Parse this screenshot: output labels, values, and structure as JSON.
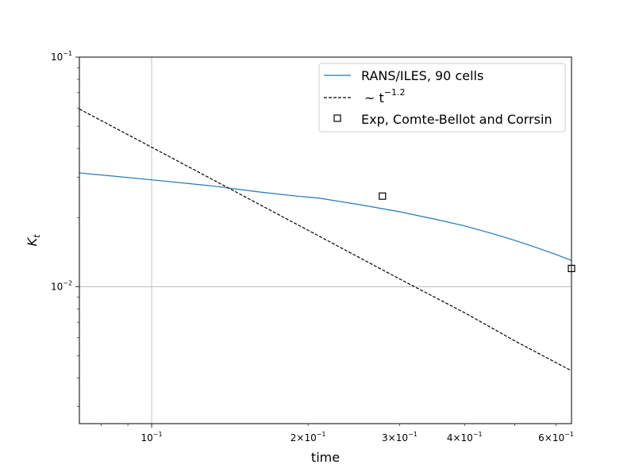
{
  "chart_data": {
    "type": "line",
    "xlabel": "time",
    "ylabel": "K",
    "ylabel_sub": "t",
    "xscale": "log",
    "yscale": "log",
    "xlim": [
      0.0726,
      0.6425
    ],
    "ylim": [
      0.00253,
      0.1
    ],
    "grid": "major",
    "legend_position": "upper-right",
    "x_major_ticks": [
      {
        "value": 0.1,
        "base": "10",
        "exp": "−1"
      }
    ],
    "x_minor_tick_labels": [
      {
        "value": 0.2,
        "coef": "2",
        "base": "10",
        "exp": "−1"
      },
      {
        "value": 0.3,
        "coef": "3",
        "base": "10",
        "exp": "−1"
      },
      {
        "value": 0.4,
        "coef": "4",
        "base": "10",
        "exp": "−1"
      },
      {
        "value": 0.6,
        "coef": "6",
        "base": "10",
        "exp": "−1"
      }
    ],
    "y_major_ticks": [
      {
        "value": 0.01,
        "base": "10",
        "exp": "−2"
      },
      {
        "value": 0.1,
        "base": "10",
        "exp": "−1"
      }
    ],
    "series": [
      {
        "name": "RANS/ILES, 90 cells",
        "style": "solid",
        "color": "#1f77b4",
        "points": [
          [
            0.0726,
            0.0313
          ],
          [
            0.1,
            0.0292
          ],
          [
            0.13,
            0.0275
          ],
          [
            0.16,
            0.0259
          ],
          [
            0.19,
            0.0248
          ],
          [
            0.21,
            0.0243
          ],
          [
            0.25,
            0.0228
          ],
          [
            0.3,
            0.0212
          ],
          [
            0.35,
            0.0197
          ],
          [
            0.4,
            0.0184
          ],
          [
            0.45,
            0.0171
          ],
          [
            0.5,
            0.0159
          ],
          [
            0.55,
            0.0148
          ],
          [
            0.6,
            0.0138
          ],
          [
            0.6425,
            0.013
          ]
        ]
      },
      {
        "name": "~ t",
        "name_sup": "−1.2",
        "style": "dashed",
        "color": "#000000",
        "points": [
          [
            0.0726,
            0.0594
          ],
          [
            0.1,
            0.0405
          ],
          [
            0.2,
            0.0176
          ],
          [
            0.3,
            0.0108
          ],
          [
            0.4,
            0.0077
          ],
          [
            0.5,
            0.0058
          ],
          [
            0.6425,
            0.0043
          ]
        ]
      },
      {
        "name": "Exp, Comte-Bellot and Corrsin",
        "style": "marker",
        "marker": "square",
        "color": "#000000",
        "points": [
          [
            0.278,
            0.0248
          ],
          [
            0.6425,
            0.012
          ]
        ]
      }
    ]
  }
}
